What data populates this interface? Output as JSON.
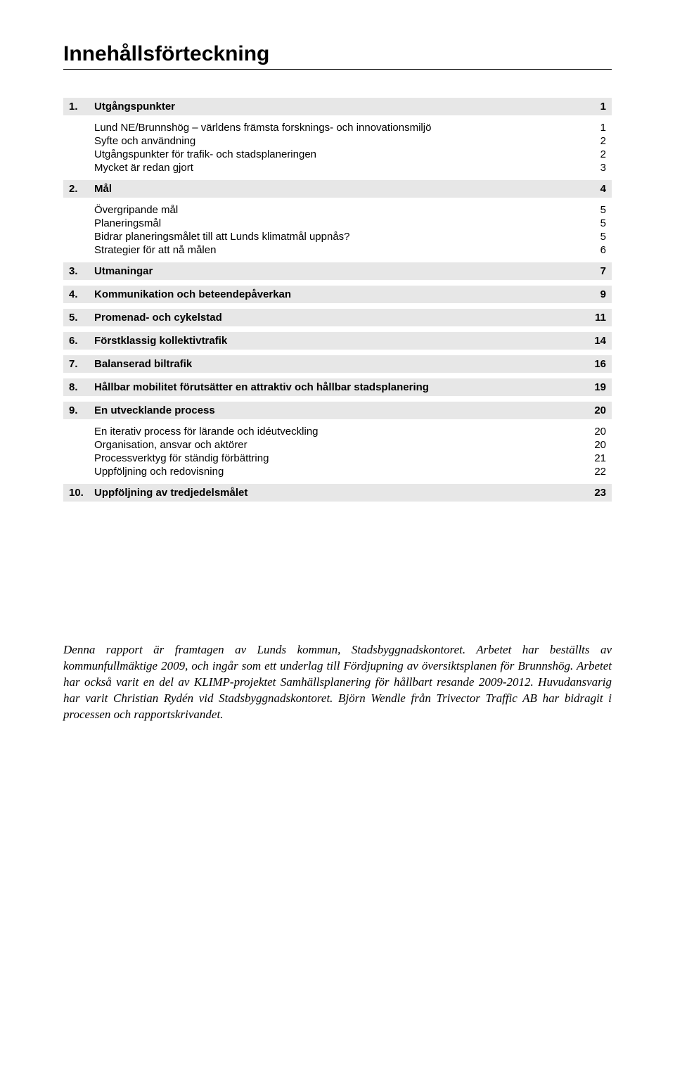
{
  "title": "Innehållsförteckning",
  "toc": [
    {
      "num": "1.",
      "label": "Utgångspunkter",
      "page": "1",
      "subs": [
        {
          "label": "Lund NE/Brunnshög – världens främsta forsknings- och innovationsmiljö",
          "page": "1"
        },
        {
          "label": "Syfte och användning",
          "page": "2"
        },
        {
          "label": "Utgångspunkter för trafik- och stadsplaneringen",
          "page": "2"
        },
        {
          "label": "Mycket är redan gjort",
          "page": "3"
        }
      ]
    },
    {
      "num": "2.",
      "label": "Mål",
      "page": "4",
      "subs": [
        {
          "label": "Övergripande mål",
          "page": "5"
        },
        {
          "label": "Planeringsmål",
          "page": "5"
        },
        {
          "label": "Bidrar planeringsmålet till att Lunds klimatmål uppnås?",
          "page": "5"
        },
        {
          "label": "Strategier för att nå målen",
          "page": "6"
        }
      ]
    },
    {
      "num": "3.",
      "label": "Utmaningar",
      "page": "7",
      "subs": []
    },
    {
      "num": "4.",
      "label": "Kommunikation och beteendepåverkan",
      "page": "9",
      "subs": []
    },
    {
      "num": "5.",
      "label": "Promenad- och cykelstad",
      "page": "11",
      "subs": []
    },
    {
      "num": "6.",
      "label": "Förstklassig kollektivtrafik",
      "page": "14",
      "subs": []
    },
    {
      "num": "7.",
      "label": "Balanserad biltrafik",
      "page": "16",
      "subs": []
    },
    {
      "num": "8.",
      "label": "Hållbar mobilitet förutsätter en attraktiv och hållbar stadsplanering",
      "page": "19",
      "subs": []
    },
    {
      "num": "9.",
      "label": "En utvecklande process",
      "page": "20",
      "subs": [
        {
          "label": "En iterativ process för lärande och idéutveckling",
          "page": "20"
        },
        {
          "label": "Organisation, ansvar och aktörer",
          "page": "20"
        },
        {
          "label": "Processverktyg för ständig förbättring",
          "page": "21"
        },
        {
          "label": "Uppföljning och redovisning",
          "page": "22"
        }
      ]
    },
    {
      "num": "10.",
      "label": "Uppföljning av tredjedelsmålet",
      "page": "23",
      "subs": []
    }
  ],
  "footnote": "Denna rapport är framtagen av Lunds kommun, Stadsbyggnadskontoret. Arbetet har beställts av kommunfullmäktige 2009, och ingår som ett underlag till Fördjupning av översiktsplanen för Brunnshög. Arbetet har också varit en del av KLIMP-projektet Samhällsplanering för hållbart resande 2009-2012. Huvudansvarig har varit Christian Rydén vid Stadsbyggnadskontoret. Björn Wendle från Trivector Traffic AB har bidragit i processen och rapportskrivandet."
}
